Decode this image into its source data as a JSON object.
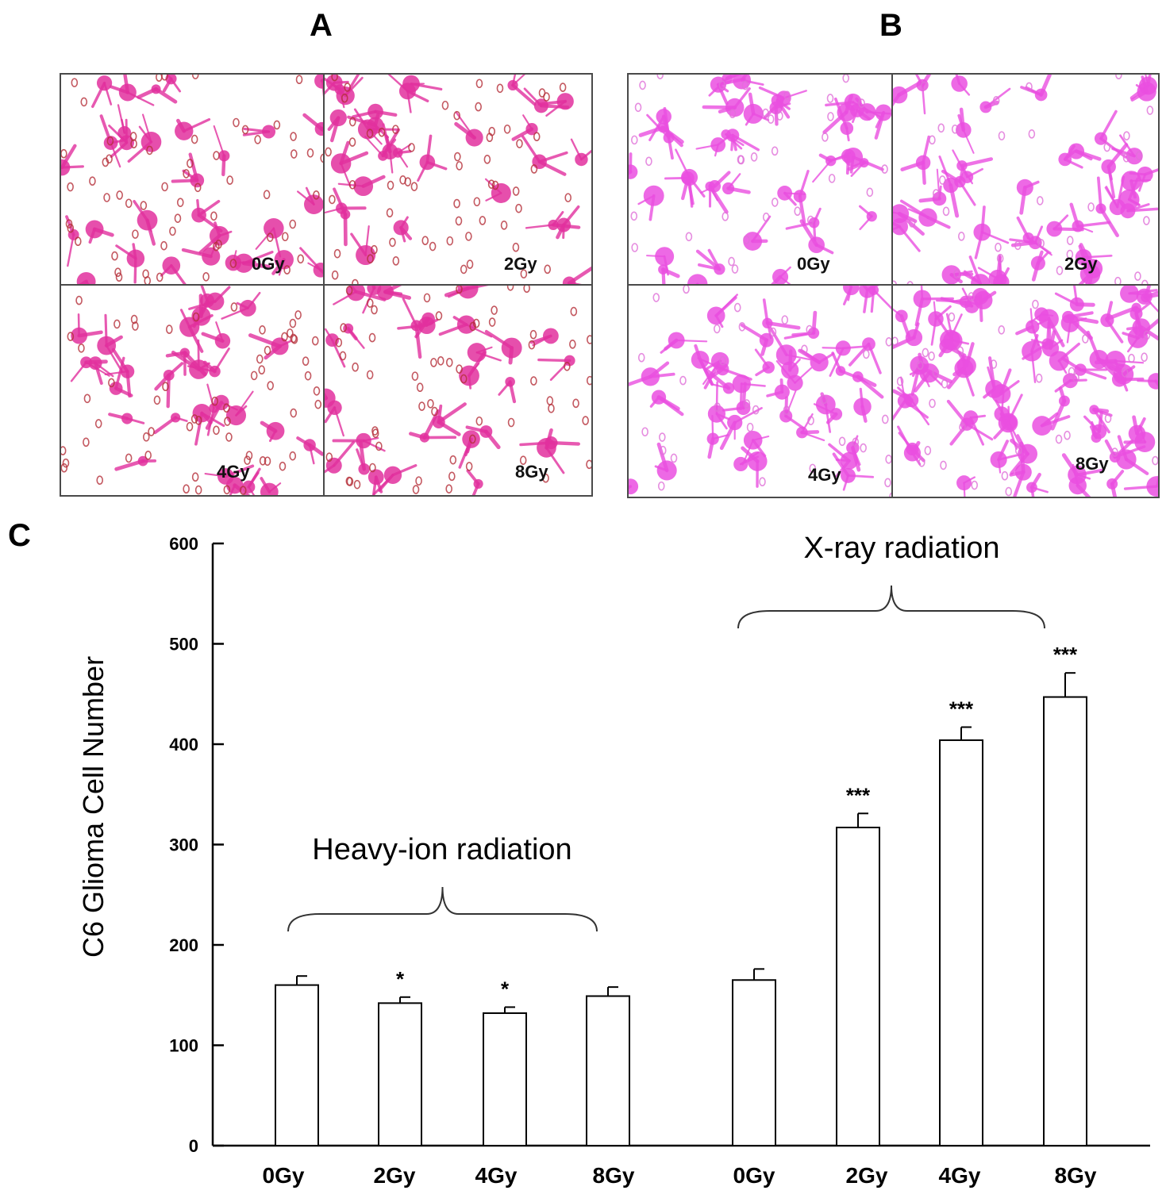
{
  "panels": {
    "A": {
      "letter": "A",
      "doses": [
        "0Gy",
        "2Gy",
        "4Gy",
        "8Gy"
      ],
      "cell_color": "#e2309e",
      "pore_color": "#b5303a"
    },
    "B": {
      "letter": "B",
      "doses": [
        "0Gy",
        "2Gy",
        "4Gy",
        "8Gy"
      ],
      "cell_color": "#ea4fe0",
      "pore_color": "#e070d8"
    },
    "C": {
      "letter": "C"
    }
  },
  "chart_data": {
    "type": "bar",
    "title": "",
    "xlabel": "",
    "ylabel": "C6 Glioma Cell Number",
    "ylim": [
      0,
      600
    ],
    "yticks": [
      0,
      100,
      200,
      300,
      400,
      500,
      600
    ],
    "groups": [
      {
        "name": "Heavy-ion radiation",
        "categories": [
          "0Gy",
          "2Gy",
          "4Gy",
          "8Gy"
        ],
        "values": [
          160,
          142,
          132,
          149
        ],
        "errors": [
          9,
          6,
          6,
          9
        ],
        "significance": [
          "",
          "*",
          "*",
          ""
        ]
      },
      {
        "name": "X-ray radiation",
        "categories": [
          "0Gy",
          "2Gy",
          "4Gy",
          "8Gy"
        ],
        "values": [
          165,
          317,
          404,
          447
        ],
        "errors": [
          11,
          14,
          13,
          24
        ],
        "significance": [
          "",
          "***",
          "***",
          "***"
        ]
      }
    ],
    "bar_fill": "#ffffff",
    "bar_stroke": "#000000",
    "grid": false,
    "legend": "none"
  }
}
